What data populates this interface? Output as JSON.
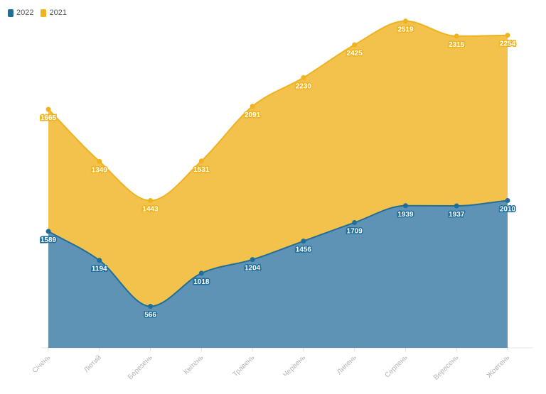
{
  "legend": {
    "items": [
      {
        "label": "2022",
        "color": "#1f6e9c"
      },
      {
        "label": "2021",
        "color": "#f0b21e"
      }
    ]
  },
  "chart_data": {
    "type": "area",
    "stacked": true,
    "categories": [
      "Січень",
      "Лютий",
      "Березень",
      "Квітень",
      "Травень",
      "Червень",
      "Липень",
      "Серпень",
      "Вересень",
      "Жовтень"
    ],
    "series": [
      {
        "name": "2022",
        "values": [
          1589,
          1194,
          566,
          1018,
          1204,
          1456,
          1709,
          1939,
          1937,
          2010
        ],
        "color": "#1f6e9c",
        "fill": "#5e93b5"
      },
      {
        "name": "2021",
        "values": [
          1665,
          1349,
          1443,
          1531,
          2091,
          2230,
          2425,
          2519,
          2315,
          2254
        ],
        "color": "#f0b21e",
        "fill": "#f2c24d"
      }
    ],
    "title": "",
    "xlabel": "",
    "ylabel": "",
    "ylim": [
      0,
      4600
    ],
    "grid": false,
    "legend_position": "top-left"
  }
}
